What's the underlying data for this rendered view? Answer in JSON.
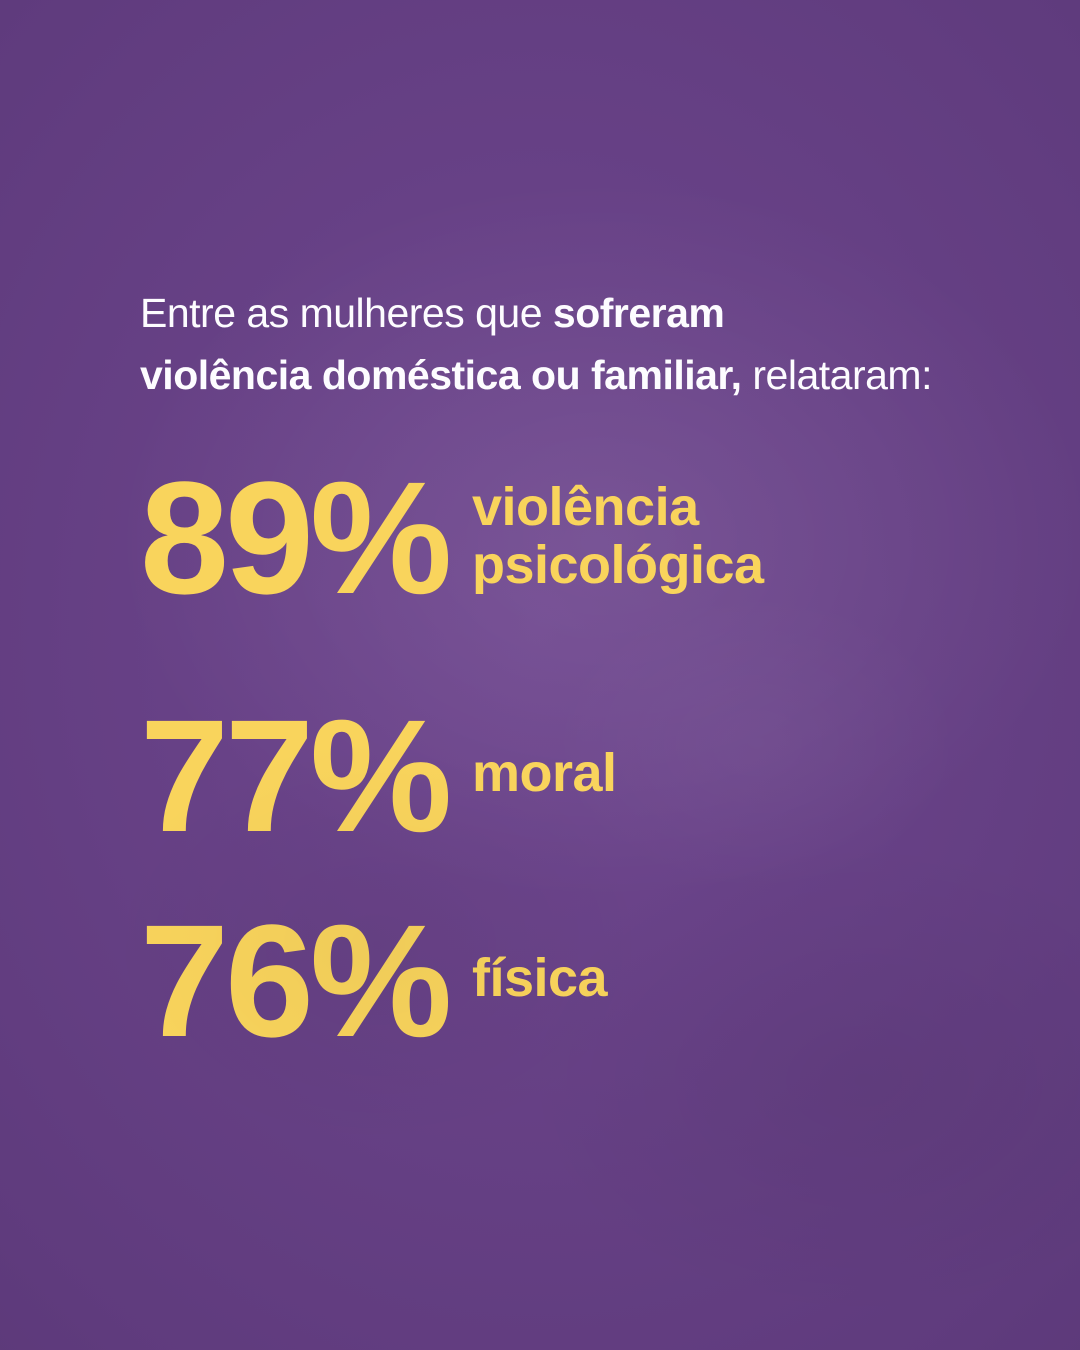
{
  "page": {
    "background_color": "#5f3b7d",
    "accent_color": "#f9d45c",
    "text_color": "#fdfcff"
  },
  "header": {
    "line1_regular": "Entre as mulheres que ",
    "line1_bold": "sofreram",
    "line2_bold": "violência doméstica ou familiar,",
    "line2_regular": " relataram:"
  },
  "stats": [
    {
      "value": "89%",
      "label": "violência\npsicológica"
    },
    {
      "value": "77%",
      "label": "moral"
    },
    {
      "value": "76%",
      "label": "física"
    }
  ],
  "chart_data": {
    "type": "table",
    "title": "Entre as mulheres que sofreram violência doméstica ou familiar, relataram:",
    "categories": [
      "violência psicológica",
      "moral",
      "física"
    ],
    "values": [
      89,
      77,
      76
    ],
    "unit": "%",
    "value_color": "#f9d45c",
    "background_color": "#5f3b7d",
    "legend_position": "none",
    "grid": false
  }
}
